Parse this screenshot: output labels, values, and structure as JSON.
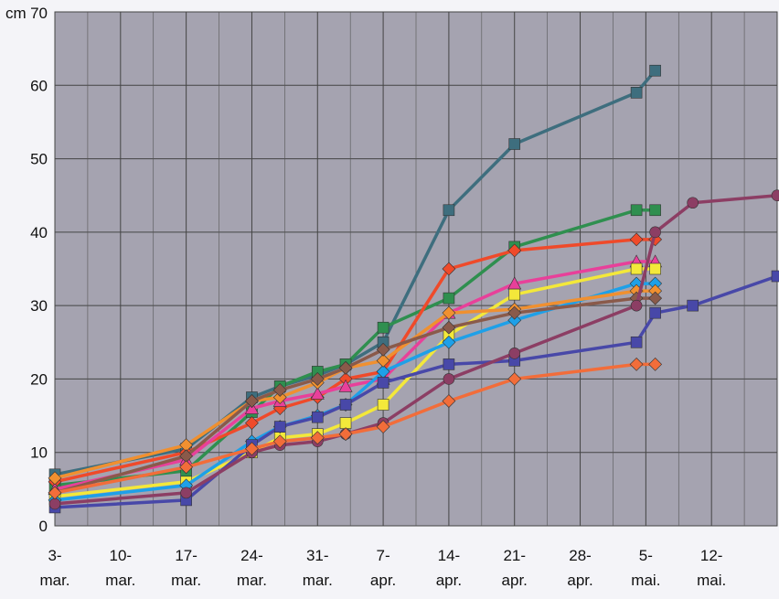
{
  "chart_data": {
    "type": "line",
    "y_unit": "cm",
    "x_ticks": [
      {
        "line1": "3-",
        "line2": "mar.",
        "day": 0
      },
      {
        "line1": "10-",
        "line2": "mar.",
        "day": 7
      },
      {
        "line1": "17-",
        "line2": "mar.",
        "day": 14
      },
      {
        "line1": "24-",
        "line2": "mar.",
        "day": 21
      },
      {
        "line1": "31-",
        "line2": "mar.",
        "day": 28
      },
      {
        "line1": "7-",
        "line2": "apr.",
        "day": 35
      },
      {
        "line1": "14-",
        "line2": "apr.",
        "day": 42
      },
      {
        "line1": "21-",
        "line2": "apr.",
        "day": 49
      },
      {
        "line1": "28-",
        "line2": "apr.",
        "day": 56
      },
      {
        "line1": "5-",
        "line2": "mai.",
        "day": 63
      },
      {
        "line1": "12-",
        "line2": "mai.",
        "day": 70
      }
    ],
    "xlim_days": [
      0,
      77
    ],
    "y_ticks": [
      0,
      10,
      20,
      30,
      40,
      50,
      60,
      70
    ],
    "y_tick_labels": [
      "0",
      "10",
      "20",
      "30",
      "40",
      "50",
      "60",
      "70"
    ],
    "ylim": [
      0,
      70
    ],
    "grid": true,
    "plot_background": "#a5a3b0",
    "series": [
      {
        "color": "#3e6e7e",
        "marker": "square",
        "days": [
          0,
          14,
          21,
          24,
          28,
          31,
          35,
          42,
          49,
          62,
          64
        ],
        "values": [
          7,
          10.5,
          17.5,
          19,
          20.5,
          22,
          25,
          43,
          52,
          59,
          62
        ]
      },
      {
        "color": "#2f8f4f",
        "marker": "square",
        "days": [
          0,
          14,
          21,
          24,
          28,
          31,
          35,
          42,
          49,
          62,
          64
        ],
        "values": [
          5.5,
          7.5,
          15.5,
          19,
          21,
          22,
          27,
          31,
          38,
          43,
          43
        ]
      },
      {
        "color": "#ef4a2a",
        "marker": "diamond",
        "days": [
          0,
          14,
          21,
          24,
          28,
          31,
          35,
          42,
          49,
          62,
          64
        ],
        "values": [
          6,
          10,
          14,
          16,
          17.5,
          20,
          21,
          35,
          37.5,
          39,
          39
        ]
      },
      {
        "color": "#e8409a",
        "marker": "triangle",
        "days": [
          0,
          14,
          21,
          24,
          28,
          31,
          35,
          42,
          49,
          62,
          64
        ],
        "values": [
          5,
          9,
          16,
          17,
          18,
          19,
          20,
          29,
          33,
          36,
          36
        ]
      },
      {
        "color": "#f3e83a",
        "marker": "square",
        "days": [
          0,
          14,
          21,
          24,
          28,
          31,
          35,
          42,
          49,
          62,
          64
        ],
        "values": [
          4,
          6,
          10,
          12,
          12.5,
          14,
          16.5,
          26,
          31.5,
          35,
          35
        ]
      },
      {
        "color": "#1ea0e8",
        "marker": "diamond",
        "days": [
          0,
          14,
          21,
          24,
          28,
          31,
          35,
          42,
          49,
          62,
          64
        ],
        "values": [
          3.5,
          5.5,
          11.5,
          13.5,
          15,
          16.5,
          21,
          25,
          28,
          33,
          33
        ]
      },
      {
        "color": "#f09030",
        "marker": "diamond",
        "days": [
          0,
          14,
          21,
          24,
          28,
          31,
          35,
          42,
          49,
          62,
          64
        ],
        "values": [
          6.5,
          11,
          17,
          17.5,
          19.5,
          21.5,
          22.5,
          29,
          29.5,
          32,
          32
        ]
      },
      {
        "color": "#8a5a4a",
        "marker": "diamond",
        "days": [
          0,
          14,
          21,
          24,
          28,
          31,
          35,
          42,
          49,
          62,
          64
        ],
        "values": [
          4.5,
          9.5,
          17,
          18.5,
          20,
          21.5,
          24,
          27,
          29,
          31,
          31
        ]
      },
      {
        "color": "#4848a8",
        "marker": "square",
        "days": [
          0,
          14,
          21,
          24,
          28,
          31,
          35,
          42,
          49,
          62,
          64,
          68,
          77
        ],
        "values": [
          2.5,
          3.5,
          11,
          13.5,
          14.8,
          16.5,
          19.5,
          22,
          22.5,
          25,
          29,
          30,
          34
        ]
      },
      {
        "color": "#8c3e64",
        "marker": "circle",
        "days": [
          0,
          14,
          21,
          24,
          28,
          31,
          35,
          42,
          49,
          62,
          64,
          68,
          77
        ],
        "values": [
          3,
          4.5,
          10,
          11,
          11.5,
          12.5,
          14,
          20,
          23.5,
          30,
          40,
          44,
          45
        ]
      },
      {
        "color": "#f26d3a",
        "marker": "diamond",
        "days": [
          0,
          14,
          21,
          24,
          28,
          31,
          35,
          42,
          49,
          62,
          64
        ],
        "values": [
          4.5,
          8,
          10.5,
          11.5,
          12,
          12.5,
          13.5,
          17,
          20,
          22,
          22
        ]
      }
    ]
  }
}
